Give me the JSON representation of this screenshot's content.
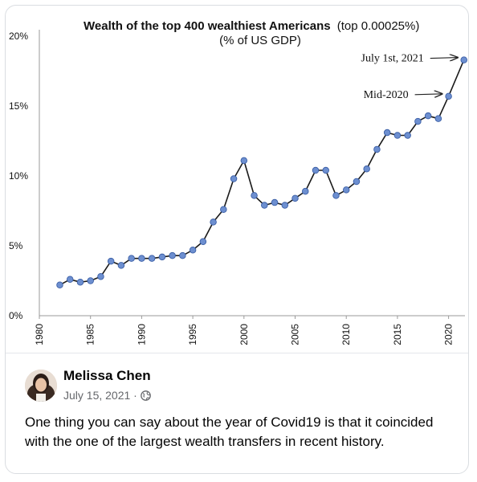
{
  "chart_data": {
    "type": "line",
    "title_bold": "Wealth of the top 400 wealthiest Americans",
    "title_suffix": "(top 0.00025%)",
    "subtitle": "(% of US GDP)",
    "xlabel": "",
    "ylabel": "",
    "xlim": [
      1980,
      2021.6
    ],
    "ylim": [
      0,
      20
    ],
    "x_ticks": [
      1980,
      1985,
      1990,
      1995,
      2000,
      2005,
      2010,
      2015,
      2020
    ],
    "y_ticks": [
      0,
      5,
      10,
      15,
      20
    ],
    "y_tick_labels": [
      "0%",
      "5%",
      "10%",
      "15%",
      "20%"
    ],
    "grid": false,
    "x": [
      1982,
      1983,
      1984,
      1985,
      1986,
      1987,
      1988,
      1989,
      1990,
      1991,
      1992,
      1993,
      1994,
      1995,
      1996,
      1997,
      1998,
      1999,
      2000,
      2001,
      2002,
      2003,
      2004,
      2005,
      2006,
      2007,
      2008,
      2009,
      2010,
      2011,
      2012,
      2013,
      2014,
      2015,
      2016,
      2017,
      2018,
      2019,
      2020,
      2021.5
    ],
    "values": [
      2.2,
      2.6,
      2.4,
      2.5,
      2.8,
      3.9,
      3.6,
      4.1,
      4.1,
      4.1,
      4.2,
      4.3,
      4.3,
      4.7,
      5.3,
      6.7,
      7.6,
      9.8,
      11.1,
      8.6,
      7.9,
      8.1,
      7.9,
      8.4,
      8.9,
      10.4,
      10.4,
      8.6,
      9.0,
      9.6,
      10.5,
      11.9,
      13.1,
      12.9,
      12.9,
      13.9,
      14.3,
      14.1,
      15.7,
      18.3
    ],
    "annotations": [
      {
        "text": "July 1st, 2021",
        "x": 2021.5,
        "y": 18.3
      },
      {
        "text": "Mid-2020",
        "x": 2020,
        "y": 15.7
      }
    ],
    "colors": {
      "line": "#1a1a1a",
      "marker_fill": "#6d8fd0",
      "marker_stroke": "#3b5fa6",
      "axis": "#9a9a9a"
    }
  },
  "post": {
    "author": "Melissa Chen",
    "date": "July 15, 2021 ·",
    "visibility_icon": "globe-icon",
    "text": "One thing you can say about the year of Covid19 is that it coincided with the one of the largest wealth transfers in recent history."
  }
}
